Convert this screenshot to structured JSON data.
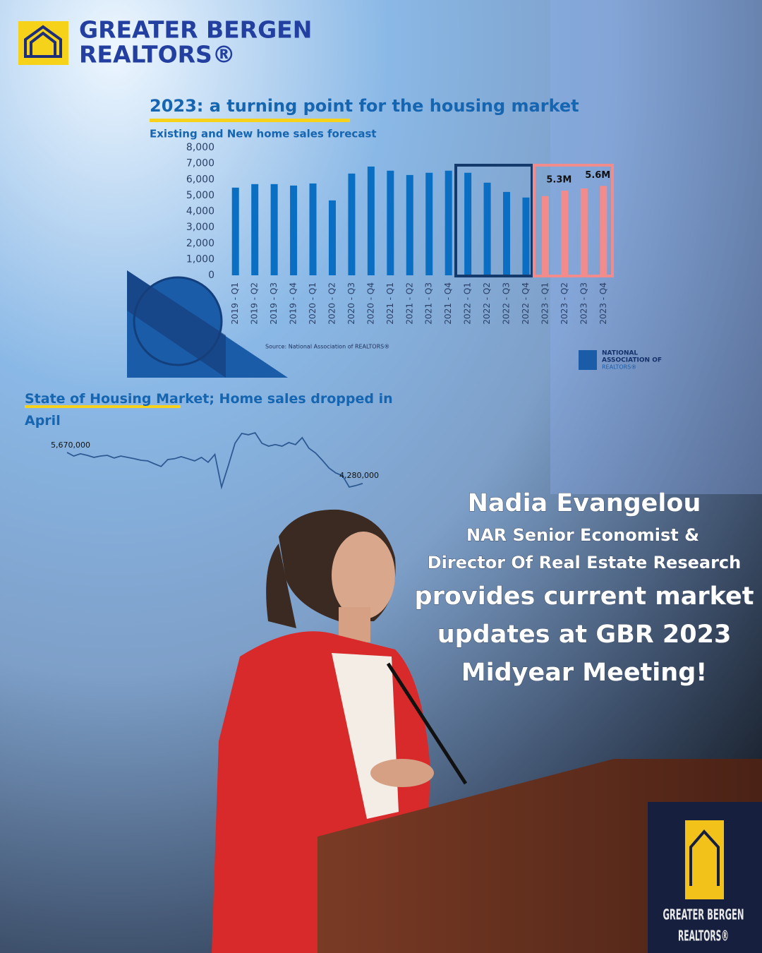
{
  "header": {
    "logo_line1": "GREATER BERGEN",
    "logo_line2": "REALTORS®"
  },
  "chart_data": [
    {
      "type": "bar",
      "title": "2023: a turning point for the housing market",
      "subtitle": "Existing and New home sales forecast",
      "source": "Source: National Association of REALTORS®",
      "categories": [
        "2019 - Q1",
        "2019 - Q2",
        "2019 - Q3",
        "2019 - Q4",
        "2020 - Q1",
        "2020 - Q2",
        "2020 - Q3",
        "2020 - Q4",
        "2021 - Q1",
        "2021 - Q2",
        "2021 - Q3",
        "2021 - Q4",
        "2022 - Q1",
        "2022 - Q2",
        "2022 - Q3",
        "2022 - Q4",
        "2023 - Q1",
        "2023 - Q2",
        "2023 - Q3",
        "2023 - Q4"
      ],
      "values": [
        5490,
        5710,
        5710,
        5620,
        5750,
        4690,
        6370,
        6810,
        6550,
        6280,
        6420,
        6550,
        6420,
        5800,
        5220,
        4870,
        4960,
        5300,
        5440,
        5600
      ],
      "value_labels": [
        null,
        null,
        null,
        null,
        null,
        null,
        null,
        null,
        null,
        null,
        null,
        null,
        null,
        null,
        null,
        null,
        null,
        "5.3M",
        null,
        "5.6M"
      ],
      "colors": [
        "#0a6fc2",
        "#0a6fc2",
        "#0a6fc2",
        "#0a6fc2",
        "#0a6fc2",
        "#0a6fc2",
        "#0a6fc2",
        "#0a6fc2",
        "#0a6fc2",
        "#0a6fc2",
        "#0a6fc2",
        "#0a6fc2",
        "#0a6fc2",
        "#0a6fc2",
        "#0a6fc2",
        "#0a6fc2",
        "#f28b8b",
        "#f28b8b",
        "#f28b8b",
        "#f28b8b"
      ],
      "ylim": [
        0,
        8000
      ],
      "yticks": [
        0,
        {
          "value": 1000,
          "label": "1,000"
        },
        {
          "value": 2000,
          "label": "2,000"
        },
        {
          "value": 3000,
          "label": "3,000"
        },
        {
          "value": 4000,
          "label": "4,000"
        },
        {
          "value": 5000,
          "label": "5,000"
        },
        {
          "value": 6000,
          "label": "6,000"
        },
        {
          "value": 7000,
          "label": "7,000"
        },
        {
          "value": 8000,
          "label": "8,000"
        }
      ],
      "grid": false
    },
    {
      "type": "line",
      "title": "State of Housing Market; Home sales dropped in April",
      "color": "#2e5a94",
      "values": [
        5670000,
        5510000,
        5610000,
        5540000,
        5450000,
        5510000,
        5540000,
        5420000,
        5510000,
        5450000,
        5390000,
        5320000,
        5290000,
        5160000,
        5040000,
        5350000,
        5390000,
        5480000,
        5390000,
        5290000,
        5450000,
        5230000,
        5580000,
        4120000,
        5070000,
        6080000,
        6520000,
        6460000,
        6550000,
        6080000,
        5950000,
        6020000,
        5950000,
        6110000,
        6020000,
        6330000,
        5860000,
        5640000,
        5320000,
        4970000,
        4750000,
        4630000,
        4120000,
        4190000,
        4280000
      ],
      "value_labels": [
        "5,670,000",
        null,
        null,
        null,
        null,
        null,
        null,
        null,
        null,
        null,
        null,
        null,
        null,
        null,
        null,
        null,
        null,
        null,
        null,
        null,
        null,
        null,
        null,
        null,
        null,
        null,
        null,
        null,
        null,
        null,
        null,
        null,
        null,
        null,
        null,
        null,
        null,
        null,
        null,
        null,
        null,
        null,
        null,
        null,
        "4,280,000"
      ]
    }
  ],
  "nar_logo": {
    "line1": "NATIONAL",
    "line2": "ASSOCIATION OF",
    "line3": "REALTORS®"
  },
  "caption": {
    "name": "Nadia Evangelou",
    "role_line1": "NAR Senior Economist &",
    "role_line2": "Director Of Real Estate Research",
    "message_lines": [
      "provides current market",
      "updates at GBR 2023",
      "Midyear Meeting!"
    ]
  },
  "podium_sign": {
    "line1": "GREATER BERGEN",
    "line2": "REALTORS®"
  }
}
